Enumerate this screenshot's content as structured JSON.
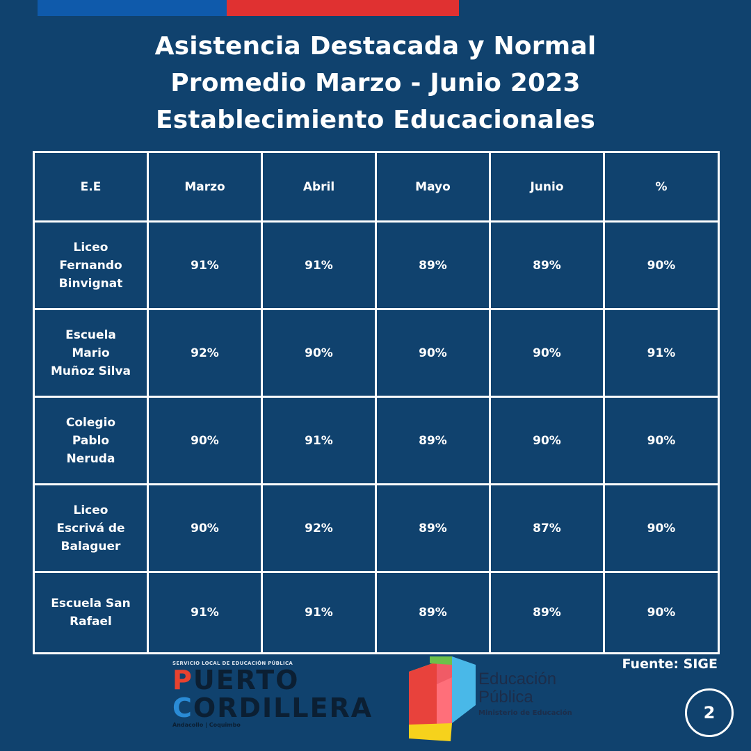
{
  "title": {
    "line1": "Asistencia Destacada y Normal",
    "line2": "Promedio Marzo - Junio 2023",
    "line3": "Establecimiento Educacionales"
  },
  "table": {
    "headers": [
      "E.E",
      "Marzo",
      "Abril",
      "Mayo",
      "Junio",
      "%"
    ],
    "rows": [
      {
        "name": [
          "Liceo",
          "Fernando",
          "Binvignat"
        ],
        "values": [
          "91%",
          "91%",
          "89%",
          "89%",
          "90%"
        ]
      },
      {
        "name": [
          "Escuela",
          "Mario",
          "Muñoz Silva"
        ],
        "values": [
          "92%",
          "90%",
          "90%",
          "90%",
          "91%"
        ]
      },
      {
        "name": [
          "Colegio",
          "Pablo",
          "Neruda"
        ],
        "values": [
          "90%",
          "91%",
          "89%",
          "90%",
          "90%"
        ]
      },
      {
        "name": [
          "Liceo",
          "Escrivá de",
          "Balaguer"
        ],
        "values": [
          "90%",
          "92%",
          "89%",
          "87%",
          "90%"
        ]
      },
      {
        "name": [
          "Escuela San",
          "Rafael"
        ],
        "values": [
          "91%",
          "91%",
          "89%",
          "89%",
          "90%"
        ]
      }
    ]
  },
  "source": "Fuente: SIGE",
  "logos": {
    "puerto_cordillera": {
      "top_text": "SERVICIO LOCAL DE EDUCACIÓN PÚBLICA",
      "line1": "PUERTO",
      "line2": "CORDILLERA",
      "bottom_text": "Andacollo | Coquimbo"
    },
    "educacion_publica": {
      "line1": "Educación",
      "line2": "Pública",
      "line3": "Ministerio de Educación"
    }
  },
  "page_number": "2",
  "colors": {
    "background": "#10426e",
    "flag_blue": "#0f5aab",
    "flag_red": "#e03131",
    "text": "#ffffff"
  }
}
